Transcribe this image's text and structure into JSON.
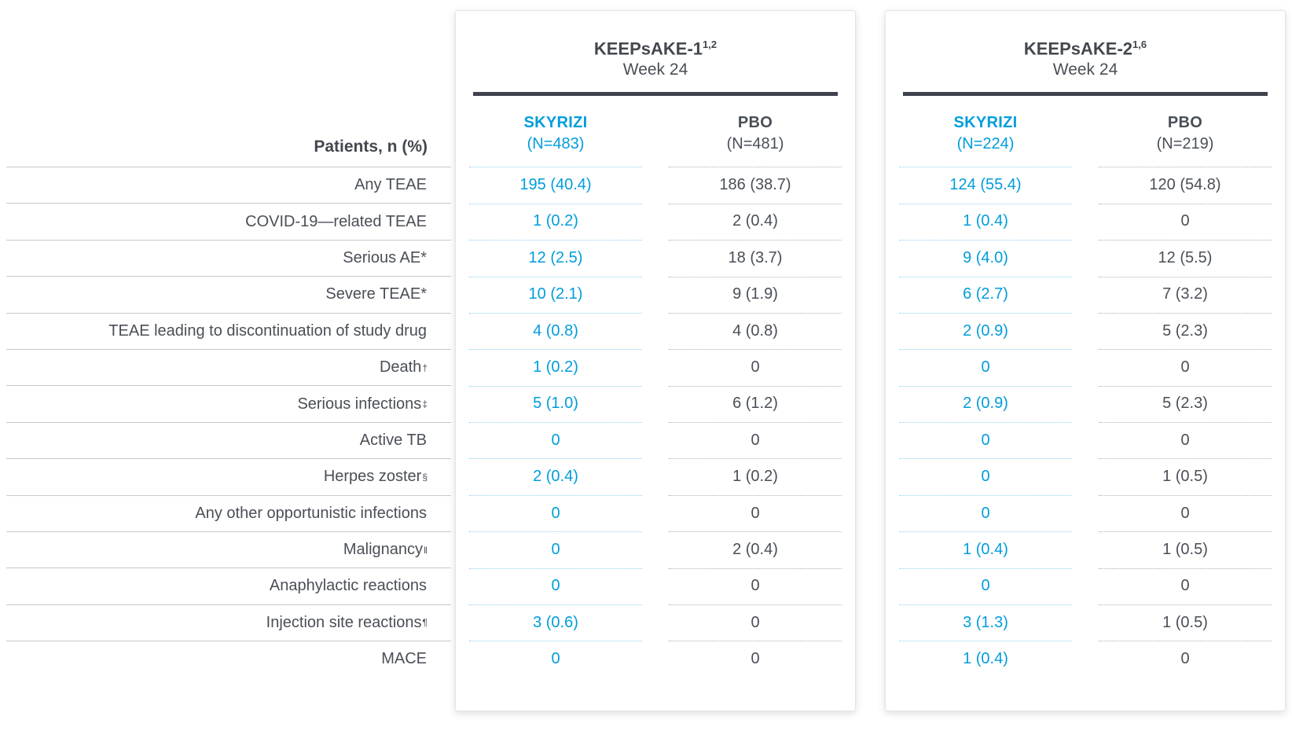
{
  "chart_data": {
    "type": "table",
    "row_header": "Patients, n (%)",
    "colors": {
      "skyrizi_blue": "#009DDC",
      "text_dark": "#4A4F57",
      "header_bar_dark": "#3E434B",
      "label_line_gray": "#C9C9C9"
    },
    "studies": [
      {
        "title": "KEEPsAKE-1",
        "title_sup": "1,2",
        "subtitle": "Week 24",
        "skyrizi_label": "SKYRIZI",
        "skyrizi_n": "(N=483)",
        "pbo_label": "PBO",
        "pbo_n": "(N=481)"
      },
      {
        "title": "KEEPsAKE-2",
        "title_sup": "1,6",
        "subtitle": "Week 24",
        "skyrizi_label": "SKYRIZI",
        "skyrizi_n": "(N=224)",
        "pbo_label": "PBO",
        "pbo_n": "(N=219)"
      }
    ],
    "rows": [
      {
        "label": "Any TEAE",
        "sup": "",
        "k1s": "195 (40.4)",
        "k1p": "186 (38.7)",
        "k2s": "124 (55.4)",
        "k2p": "120 (54.8)"
      },
      {
        "label": "COVID-19—related TEAE",
        "sup": "",
        "k1s": "1 (0.2)",
        "k1p": "2 (0.4)",
        "k2s": "1 (0.4)",
        "k2p": "0"
      },
      {
        "label": "Serious AE*",
        "sup": "",
        "k1s": "12 (2.5)",
        "k1p": "18 (3.7)",
        "k2s": "9 (4.0)",
        "k2p": "12 (5.5)"
      },
      {
        "label": "Severe TEAE*",
        "sup": "",
        "k1s": "10 (2.1)",
        "k1p": "9 (1.9)",
        "k2s": "6 (2.7)",
        "k2p": "7 (3.2)"
      },
      {
        "label": "TEAE leading to discontinuation of study drug",
        "sup": "",
        "k1s": "4 (0.8)",
        "k1p": "4 (0.8)",
        "k2s": "2 (0.9)",
        "k2p": "5 (2.3)"
      },
      {
        "label": "Death",
        "sup": "†",
        "k1s": "1 (0.2)",
        "k1p": "0",
        "k2s": "0",
        "k2p": "0"
      },
      {
        "label": "Serious infections",
        "sup": "‡",
        "k1s": "5 (1.0)",
        "k1p": "6 (1.2)",
        "k2s": "2 (0.9)",
        "k2p": "5 (2.3)"
      },
      {
        "label": "Active TB",
        "sup": "",
        "k1s": "0",
        "k1p": "0",
        "k2s": "0",
        "k2p": "0"
      },
      {
        "label": "Herpes zoster",
        "sup": "§",
        "k1s": "2 (0.4)",
        "k1p": "1 (0.2)",
        "k2s": "0",
        "k2p": "1 (0.5)"
      },
      {
        "label": "Any other opportunistic infections",
        "sup": "",
        "k1s": "0",
        "k1p": "0",
        "k2s": "0",
        "k2p": "0"
      },
      {
        "label": "Malignancy",
        "sup": "‖",
        "k1s": "0",
        "k1p": "2 (0.4)",
        "k2s": "1 (0.4)",
        "k2p": "1 (0.5)"
      },
      {
        "label": "Anaphylactic reactions",
        "sup": "",
        "k1s": "0",
        "k1p": "0",
        "k2s": "0",
        "k2p": "0"
      },
      {
        "label": "Injection site reactions",
        "sup": "¶",
        "k1s": "3 (0.6)",
        "k1p": "0",
        "k2s": "3 (1.3)",
        "k2p": "1 (0.5)"
      },
      {
        "label": "MACE",
        "sup": "",
        "k1s": "0",
        "k1p": "0",
        "k2s": "1 (0.4)",
        "k2p": "0"
      }
    ]
  }
}
